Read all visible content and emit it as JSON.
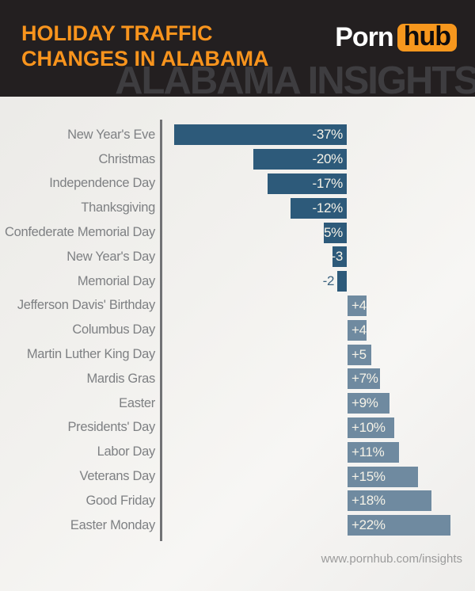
{
  "header": {
    "title_line1": "HOLIDAY TRAFFIC",
    "title_line2": "CHANGES IN ALABAMA",
    "logo_part1": "Porn",
    "logo_part2": "hub",
    "watermark": "ALABAMA INSIGHTS"
  },
  "footer": {
    "url": "www.pornhub.com/insights"
  },
  "colors": {
    "header_background": "#231f20",
    "title_orange": "#f8941d",
    "logo_orange": "#f7971d",
    "negative_bar": "#2d5a7a",
    "positive_bar": "#6f8aa0",
    "category_label": "#7e8083",
    "value_text": "#f6f3e8",
    "axis_line": "#717275"
  },
  "chart_data": {
    "type": "bar",
    "orientation": "horizontal",
    "title": "Holiday Traffic Changes in Alabama",
    "xlabel": "",
    "ylabel": "",
    "xlim": [
      -39,
      27
    ],
    "grid": false,
    "legend": false,
    "categories": [
      "New Year's Eve",
      "Christmas",
      "Independence Day",
      "Thanksgiving",
      "Confederate Memorial Day",
      "New Year's Day",
      "Memorial Day",
      "Jefferson Davis' Birthday",
      "Columbus Day",
      "Martin Luther King Day",
      "Mardis Gras",
      "Easter",
      "Presidents' Day",
      "Labor Day",
      "Veterans Day",
      "Good Friday",
      "Easter Monday"
    ],
    "values": [
      -37,
      -20,
      -17,
      -12,
      -5,
      -3,
      -2,
      4,
      4,
      5,
      7,
      9,
      10,
      11,
      15,
      18,
      22
    ],
    "value_labels": [
      "-37%",
      "-20%",
      "-17%",
      "-12%",
      "-5%",
      "-3",
      "-2",
      "+4",
      "+4",
      "+5",
      "+7%",
      "+9%",
      "+10%",
      "+11%",
      "+15%",
      "+18%",
      "+22%"
    ],
    "outside_label_indices": [
      6
    ]
  }
}
